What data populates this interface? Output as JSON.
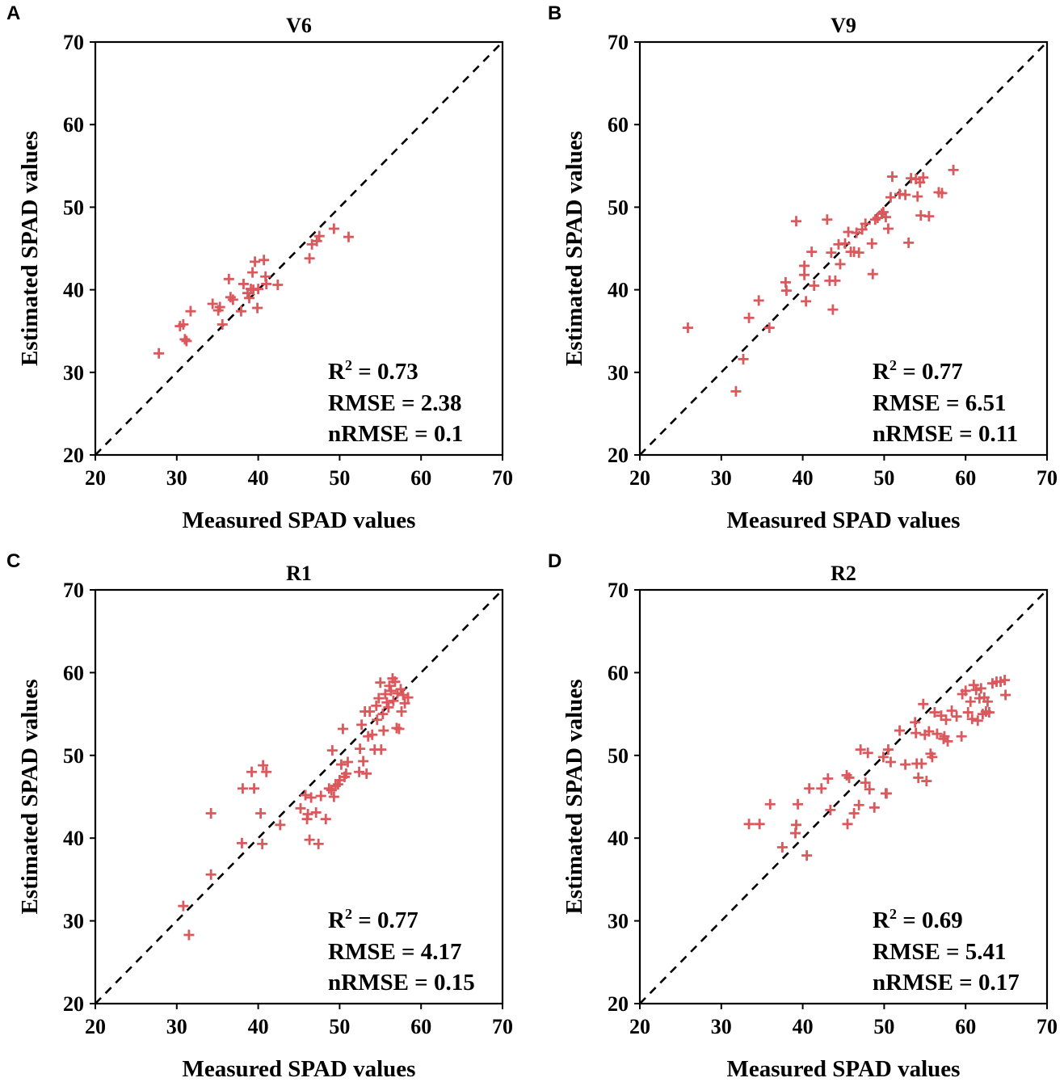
{
  "marker_color": "#d9595c",
  "chart_data": [
    {
      "type": "scatter",
      "panel_label": "A",
      "title": "V6",
      "xlabel": "Measured SPAD values",
      "ylabel": "Estimated SPAD values",
      "xlim": [
        20,
        70
      ],
      "ylim": [
        20,
        70
      ],
      "xticks": [
        "20",
        "30",
        "40",
        "50",
        "60",
        "70"
      ],
      "yticks": [
        "20",
        "30",
        "40",
        "50",
        "60",
        "70"
      ],
      "reference_line": "1:1 dashed",
      "stats": {
        "r2_label": "R",
        "r2_sup": "2",
        "r2_value": " = 0.73",
        "rmse": "RMSE = 2.38",
        "nrmse": "nRMSE = 0.1"
      },
      "points": [
        [
          27.8,
          32.3
        ],
        [
          30.4,
          35.6
        ],
        [
          30.8,
          35.8
        ],
        [
          31.0,
          34.0
        ],
        [
          31.2,
          33.8
        ],
        [
          31.7,
          37.4
        ],
        [
          34.4,
          38.3
        ],
        [
          35.1,
          37.5
        ],
        [
          35.3,
          37.9
        ],
        [
          35.6,
          35.8
        ],
        [
          36.4,
          41.3
        ],
        [
          36.6,
          39.1
        ],
        [
          36.9,
          38.8
        ],
        [
          37.9,
          37.4
        ],
        [
          38.2,
          40.7
        ],
        [
          38.7,
          39.6
        ],
        [
          38.9,
          39.0
        ],
        [
          39.1,
          40.1
        ],
        [
          39.3,
          42.1
        ],
        [
          39.4,
          40.0
        ],
        [
          39.6,
          43.4
        ],
        [
          39.9,
          37.8
        ],
        [
          40.0,
          40.1
        ],
        [
          40.7,
          43.6
        ],
        [
          40.9,
          41.6
        ],
        [
          41.0,
          40.7
        ],
        [
          42.4,
          40.6
        ],
        [
          46.3,
          43.8
        ],
        [
          46.6,
          45.5
        ],
        [
          47.2,
          45.9
        ],
        [
          47.5,
          46.5
        ],
        [
          49.3,
          47.4
        ],
        [
          51.1,
          46.4
        ]
      ]
    },
    {
      "type": "scatter",
      "panel_label": "B",
      "title": "V9",
      "xlabel": "Measured SPAD values",
      "ylabel": "Estimated SPAD values",
      "xlim": [
        20,
        70
      ],
      "ylim": [
        20,
        70
      ],
      "xticks": [
        "20",
        "30",
        "40",
        "50",
        "60",
        "70"
      ],
      "yticks": [
        "20",
        "30",
        "40",
        "50",
        "60",
        "70"
      ],
      "reference_line": "1:1 dashed",
      "stats": {
        "r2_label": "R",
        "r2_sup": "2",
        "r2_value": " = 0.77",
        "rmse": "RMSE = 6.51",
        "nrmse": "nRMSE = 0.11"
      },
      "points": [
        [
          25.9,
          35.4
        ],
        [
          31.8,
          27.7
        ],
        [
          32.7,
          31.6
        ],
        [
          33.4,
          36.6
        ],
        [
          34.6,
          38.7
        ],
        [
          35.9,
          35.4
        ],
        [
          37.9,
          40.9
        ],
        [
          38.0,
          39.9
        ],
        [
          39.2,
          48.3
        ],
        [
          40.2,
          42.9
        ],
        [
          40.2,
          41.8
        ],
        [
          40.4,
          38.6
        ],
        [
          41.1,
          44.6
        ],
        [
          41.4,
          40.5
        ],
        [
          43.0,
          48.5
        ],
        [
          43.3,
          41.1
        ],
        [
          43.5,
          44.5
        ],
        [
          43.7,
          37.6
        ],
        [
          44.0,
          41.1
        ],
        [
          44.4,
          45.5
        ],
        [
          44.6,
          43.1
        ],
        [
          45.2,
          45.6
        ],
        [
          45.6,
          47.0
        ],
        [
          45.9,
          44.6
        ],
        [
          46.3,
          44.6
        ],
        [
          46.6,
          46.9
        ],
        [
          46.9,
          44.5
        ],
        [
          47.3,
          47.3
        ],
        [
          47.7,
          48.0
        ],
        [
          48.5,
          45.6
        ],
        [
          48.6,
          41.9
        ],
        [
          48.9,
          48.5
        ],
        [
          49.2,
          48.7
        ],
        [
          49.7,
          49.2
        ],
        [
          49.9,
          49.4
        ],
        [
          50.2,
          48.8
        ],
        [
          50.5,
          47.4
        ],
        [
          50.8,
          51.2
        ],
        [
          51.0,
          53.7
        ],
        [
          51.9,
          51.6
        ],
        [
          52.6,
          51.5
        ],
        [
          53.0,
          45.7
        ],
        [
          53.3,
          53.5
        ],
        [
          53.9,
          53.4
        ],
        [
          54.1,
          51.3
        ],
        [
          54.4,
          53.0
        ],
        [
          54.5,
          49.0
        ],
        [
          54.8,
          53.6
        ],
        [
          55.5,
          48.9
        ],
        [
          56.7,
          51.8
        ],
        [
          57.1,
          51.7
        ],
        [
          58.5,
          54.5
        ]
      ]
    },
    {
      "type": "scatter",
      "panel_label": "C",
      "title": "R1",
      "xlabel": "Measured SPAD values",
      "ylabel": "Estimated SPAD values",
      "xlim": [
        20,
        70
      ],
      "ylim": [
        20,
        70
      ],
      "xticks": [
        "20",
        "30",
        "40",
        "50",
        "60",
        "70"
      ],
      "yticks": [
        "20",
        "30",
        "40",
        "50",
        "60",
        "70"
      ],
      "reference_line": "1:1 dashed",
      "stats": {
        "r2_label": "R",
        "r2_sup": "2",
        "r2_value": " = 0.77",
        "rmse": "RMSE = 4.17",
        "nrmse": "nRMSE = 0.15"
      },
      "points": [
        [
          30.8,
          31.8
        ],
        [
          31.5,
          28.3
        ],
        [
          34.2,
          43.0
        ],
        [
          34.2,
          35.6
        ],
        [
          38.0,
          39.4
        ],
        [
          38.1,
          46.0
        ],
        [
          39.2,
          48.0
        ],
        [
          39.5,
          46.0
        ],
        [
          40.3,
          43.0
        ],
        [
          40.5,
          39.3
        ],
        [
          40.6,
          48.8
        ],
        [
          41.0,
          48.0
        ],
        [
          42.7,
          41.6
        ],
        [
          45.2,
          43.6
        ],
        [
          45.8,
          45.2
        ],
        [
          46.0,
          42.3
        ],
        [
          46.1,
          42.9
        ],
        [
          46.3,
          39.8
        ],
        [
          46.5,
          44.9
        ],
        [
          47.1,
          43.1
        ],
        [
          47.4,
          39.3
        ],
        [
          47.7,
          45.1
        ],
        [
          48.3,
          42.3
        ],
        [
          48.7,
          46.0
        ],
        [
          49.0,
          45.8
        ],
        [
          49.1,
          50.6
        ],
        [
          49.3,
          45.0
        ],
        [
          49.5,
          46.3
        ],
        [
          49.8,
          46.5
        ],
        [
          50.0,
          47.0
        ],
        [
          50.2,
          48.9
        ],
        [
          50.4,
          53.2
        ],
        [
          50.6,
          47.4
        ],
        [
          50.8,
          47.8
        ],
        [
          51.0,
          49.2
        ],
        [
          52.4,
          48.0
        ],
        [
          52.5,
          50.8
        ],
        [
          52.7,
          53.7
        ],
        [
          52.9,
          49.3
        ],
        [
          53.1,
          55.3
        ],
        [
          53.3,
          47.8
        ],
        [
          53.5,
          52.3
        ],
        [
          53.7,
          55.3
        ],
        [
          54.0,
          52.5
        ],
        [
          54.3,
          50.7
        ],
        [
          54.5,
          56.0
        ],
        [
          54.6,
          54.3
        ],
        [
          54.8,
          56.9
        ],
        [
          55.0,
          58.8
        ],
        [
          55.1,
          50.7
        ],
        [
          55.3,
          55.0
        ],
        [
          55.4,
          53.0
        ],
        [
          55.6,
          57.4
        ],
        [
          55.8,
          56.4
        ],
        [
          56.0,
          55.8
        ],
        [
          56.1,
          58.4
        ],
        [
          56.3,
          57.8
        ],
        [
          56.5,
          59.3
        ],
        [
          56.6,
          56.6
        ],
        [
          56.8,
          58.9
        ],
        [
          57.0,
          53.3
        ],
        [
          57.1,
          57.5
        ],
        [
          57.3,
          53.2
        ],
        [
          57.5,
          58.0
        ],
        [
          57.6,
          55.3
        ],
        [
          57.8,
          57.3
        ],
        [
          58.0,
          56.3
        ],
        [
          58.4,
          57.0
        ]
      ]
    },
    {
      "type": "scatter",
      "panel_label": "D",
      "title": "R2",
      "xlabel": "Measured SPAD values",
      "ylabel": "Estimated SPAD values",
      "xlim": [
        20,
        70
      ],
      "ylim": [
        20,
        70
      ],
      "xticks": [
        "20",
        "30",
        "40",
        "50",
        "60",
        "70"
      ],
      "yticks": [
        "20",
        "30",
        "40",
        "50",
        "60",
        "70"
      ],
      "reference_line": "1:1 dashed",
      "stats": {
        "r2_label": "R",
        "r2_sup": "2",
        "r2_value": " = 0.69",
        "rmse": "RMSE = 5.41",
        "nrmse": "nRMSE = 0.17"
      },
      "points": [
        [
          33.4,
          41.7
        ],
        [
          34.7,
          41.7
        ],
        [
          36.0,
          44.1
        ],
        [
          37.5,
          38.9
        ],
        [
          39.1,
          40.6
        ],
        [
          39.2,
          41.6
        ],
        [
          39.4,
          44.1
        ],
        [
          40.5,
          37.9
        ],
        [
          40.8,
          46.0
        ],
        [
          42.3,
          46.0
        ],
        [
          43.1,
          47.2
        ],
        [
          43.4,
          43.4
        ],
        [
          45.4,
          47.6
        ],
        [
          45.5,
          41.7
        ],
        [
          45.7,
          47.3
        ],
        [
          46.3,
          43.0
        ],
        [
          46.9,
          44.0
        ],
        [
          47.1,
          50.7
        ],
        [
          47.7,
          46.7
        ],
        [
          48.0,
          50.3
        ],
        [
          48.2,
          45.9
        ],
        [
          48.8,
          43.7
        ],
        [
          49.9,
          49.8
        ],
        [
          50.2,
          45.4
        ],
        [
          50.3,
          45.4
        ],
        [
          50.5,
          50.7
        ],
        [
          50.8,
          49.2
        ],
        [
          51.9,
          53.0
        ],
        [
          52.6,
          48.9
        ],
        [
          53.8,
          54.0
        ],
        [
          53.9,
          52.7
        ],
        [
          54.0,
          49.0
        ],
        [
          54.2,
          47.3
        ],
        [
          54.6,
          49.0
        ],
        [
          54.8,
          56.2
        ],
        [
          55.0,
          52.5
        ],
        [
          55.2,
          46.9
        ],
        [
          55.5,
          52.9
        ],
        [
          55.7,
          50.2
        ],
        [
          55.9,
          49.8
        ],
        [
          56.2,
          55.2
        ],
        [
          56.5,
          52.6
        ],
        [
          57.0,
          54.8
        ],
        [
          57.3,
          52.0
        ],
        [
          57.4,
          52.3
        ],
        [
          57.6,
          54.3
        ],
        [
          57.8,
          51.7
        ],
        [
          58.3,
          55.4
        ],
        [
          58.9,
          54.7
        ],
        [
          59.5,
          52.3
        ],
        [
          59.6,
          57.4
        ],
        [
          60.0,
          57.8
        ],
        [
          60.3,
          55.2
        ],
        [
          60.6,
          56.5
        ],
        [
          60.8,
          54.4
        ],
        [
          61.0,
          58.5
        ],
        [
          61.3,
          57.9
        ],
        [
          61.5,
          54.2
        ],
        [
          61.7,
          56.9
        ],
        [
          61.9,
          58.1
        ],
        [
          62.1,
          55.0
        ],
        [
          62.3,
          57.0
        ],
        [
          62.5,
          55.3
        ],
        [
          62.7,
          56.5
        ],
        [
          62.9,
          55.2
        ],
        [
          63.3,
          58.7
        ],
        [
          63.8,
          58.9
        ],
        [
          64.3,
          58.9
        ],
        [
          64.8,
          59.1
        ],
        [
          64.9,
          57.3
        ]
      ]
    }
  ]
}
